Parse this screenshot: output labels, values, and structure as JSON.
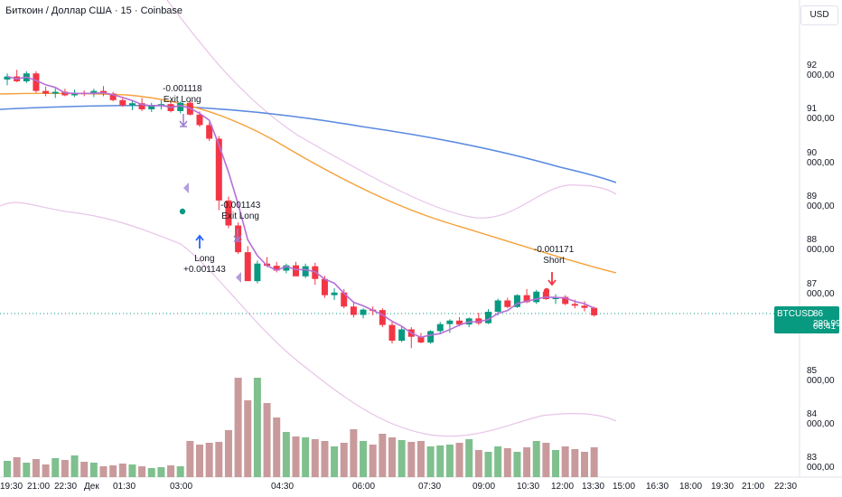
{
  "legend": {
    "title": "Биткоин / Доллар США · 15 · Coinbase"
  },
  "currency_button": {
    "label": "USD"
  },
  "price_label": {
    "symbol": "BTCUSD",
    "price": "86 299,99",
    "countdown": "06:41"
  },
  "y_ticks": [
    "92 000,00",
    "91 000,00",
    "90 000,00",
    "89 000,00",
    "88 000,00",
    "87 000,00",
    "85 000,00",
    "84 000,00",
    "83 000,00"
  ],
  "x_ticks": [
    "19:30",
    "21:00",
    "22:30",
    "Дек",
    "01:30",
    "03:00",
    "04:30",
    "06:00",
    "07:30",
    "09:00",
    "10:30",
    "12:00",
    "13:30",
    "15:00",
    "16:30",
    "18:00",
    "19:30",
    "21:00",
    "22:30"
  ],
  "annotations": [
    {
      "line1": "-0.001118",
      "line2": "Exit Long"
    },
    {
      "line1": "-0.001143",
      "line2": "Exit Long"
    },
    {
      "line1": "Long",
      "line2": "+0.001143"
    },
    {
      "line1": "-0.001171",
      "line2": "Short"
    }
  ],
  "colors": {
    "up": "#089981",
    "down": "#f23645",
    "vol_up": "#7fc08e",
    "vol_down": "#c99a9c",
    "ma_blue": "#5b8ae0",
    "ma_orange": "#f5a13a",
    "ma_purple": "#b76fd6",
    "band": "#e8c4e8"
  },
  "chart_data": {
    "type": "candlestick",
    "y_range": [
      82800,
      92700
    ],
    "candles": [
      [
        "19:30",
        91680,
        91820,
        91550,
        91750
      ],
      [
        "",
        91750,
        91900,
        91620,
        91640
      ],
      [
        "",
        91640,
        91870,
        91600,
        91820
      ],
      [
        "",
        91820,
        91870,
        91380,
        91420
      ],
      [
        "",
        91420,
        91520,
        91300,
        91360
      ],
      [
        "21:00",
        91360,
        91480,
        91260,
        91400
      ],
      [
        "",
        91400,
        91470,
        91300,
        91320
      ],
      [
        "",
        91320,
        91450,
        91280,
        91380
      ],
      [
        "",
        91380,
        91430,
        91300,
        91350
      ],
      [
        "",
        91350,
        91470,
        91280,
        91420
      ],
      [
        "22:30",
        91420,
        91530,
        91300,
        91360
      ],
      [
        "",
        91360,
        91400,
        91180,
        91210
      ],
      [
        "",
        91210,
        91260,
        91060,
        91090
      ],
      [
        "",
        91090,
        91200,
        90980,
        91140
      ],
      [
        "Дек",
        91140,
        91260,
        90960,
        91000
      ],
      [
        "",
        91000,
        91150,
        90940,
        91100
      ],
      [
        "",
        91100,
        91210,
        91000,
        91120
      ],
      [
        "01:30",
        91120,
        91190,
        90930,
        90960
      ],
      [
        "",
        90960,
        91180,
        90910,
        91150
      ],
      [
        "",
        91150,
        91210,
        90860,
        90880
      ],
      [
        "",
        90880,
        90950,
        90600,
        90640
      ],
      [
        "",
        90640,
        90700,
        90280,
        90330
      ],
      [
        "03:00",
        90330,
        90390,
        88700,
        88920
      ],
      [
        "",
        88920,
        89010,
        88290,
        88350
      ],
      [
        "",
        88350,
        88420,
        87700,
        87740
      ],
      [
        "",
        87740,
        87880,
        87100,
        87080
      ],
      [
        "04:30",
        87080,
        87550,
        87030,
        87480
      ],
      [
        "",
        87480,
        87630,
        87400,
        87430
      ],
      [
        "",
        87430,
        87520,
        87280,
        87320
      ],
      [
        "",
        87320,
        87480,
        87260,
        87440
      ],
      [
        "",
        87440,
        87520,
        87200,
        87190
      ],
      [
        "",
        87190,
        87480,
        87150,
        87420
      ],
      [
        "",
        87420,
        87500,
        87000,
        87130
      ],
      [
        "06:00",
        87130,
        87200,
        86700,
        86760
      ],
      [
        "",
        86760,
        86920,
        86650,
        86820
      ],
      [
        "",
        86820,
        86900,
        86460,
        86500
      ],
      [
        "",
        86500,
        86580,
        86250,
        86310
      ],
      [
        "",
        86310,
        86460,
        86230,
        86430
      ],
      [
        "",
        86430,
        86500,
        86300,
        86420
      ],
      [
        "",
        86420,
        86460,
        86030,
        86080
      ],
      [
        "07:30",
        86080,
        86160,
        85660,
        85720
      ],
      [
        "",
        85720,
        86040,
        85690,
        85980
      ],
      [
        "",
        85980,
        86030,
        85550,
        85810
      ],
      [
        "",
        85810,
        85900,
        85660,
        85680
      ],
      [
        "",
        85680,
        85960,
        85650,
        85940
      ],
      [
        "09:00",
        85940,
        86150,
        85880,
        86100
      ],
      [
        "",
        86100,
        86210,
        85900,
        86180
      ],
      [
        "",
        86180,
        86260,
        86050,
        86090
      ],
      [
        "",
        86090,
        86250,
        86030,
        86230
      ],
      [
        "",
        86230,
        86360,
        86080,
        86120
      ],
      [
        "10:30",
        86120,
        86440,
        86100,
        86380
      ],
      [
        "",
        86380,
        86680,
        86300,
        86640
      ],
      [
        "",
        86640,
        86700,
        86460,
        86490
      ],
      [
        "",
        86490,
        86780,
        86470,
        86760
      ],
      [
        "12:00",
        86760,
        86900,
        86580,
        86600
      ],
      [
        "",
        86600,
        86880,
        86560,
        86840
      ],
      [
        "",
        86840,
        86900,
        86650,
        86670
      ],
      [
        "",
        86670,
        86780,
        86560,
        86720
      ],
      [
        "",
        86720,
        86760,
        86530,
        86560
      ],
      [
        "13:30",
        86560,
        86660,
        86460,
        86520
      ],
      [
        "",
        86520,
        86620,
        86390,
        86470
      ],
      [
        "",
        86470,
        86500,
        86270,
        86300
      ]
    ],
    "series": [
      {
        "name": "",
        "color": "ma_blue"
      },
      {
        "name": "",
        "color": "ma_orange"
      },
      {
        "name": "",
        "color": "ma_purple"
      }
    ]
  }
}
